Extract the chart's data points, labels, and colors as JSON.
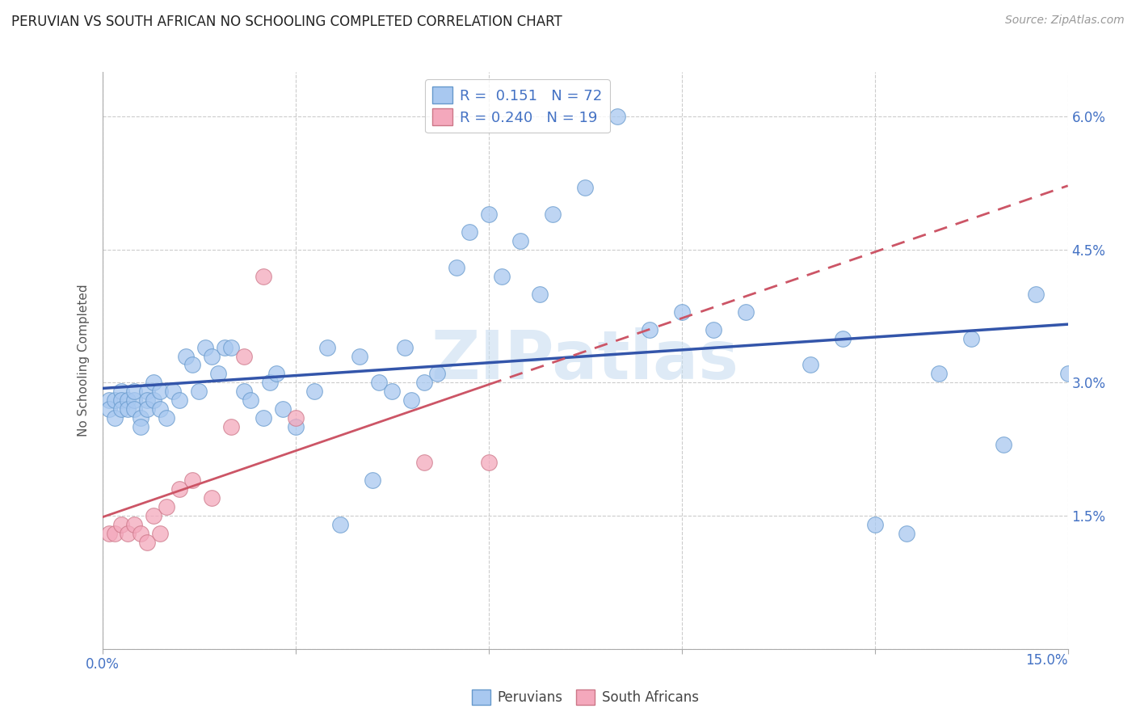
{
  "title": "PERUVIAN VS SOUTH AFRICAN NO SCHOOLING COMPLETED CORRELATION CHART",
  "source": "Source: ZipAtlas.com",
  "ylabel": "No Schooling Completed",
  "xlabel_peruvians": "Peruvians",
  "xlabel_south_africans": "South Africans",
  "xlim": [
    0.0,
    0.15
  ],
  "ylim": [
    0.0,
    0.065
  ],
  "color_peruvian": "#A8C8F0",
  "color_south_african": "#F4A8BC",
  "color_edge_peruvian": "#6699CC",
  "color_edge_south_african": "#CC7788",
  "color_line_peruvian": "#3355AA",
  "color_line_south_african": "#CC5566",
  "color_text_blue": "#4472C4",
  "color_watermark": "#C8DDF0",
  "watermark": "ZIPatlas",
  "legend_R1": "0.151",
  "legend_N1": "72",
  "legend_R2": "0.240",
  "legend_N2": "19",
  "peru_x": [
    0.001,
    0.001,
    0.002,
    0.002,
    0.003,
    0.003,
    0.003,
    0.004,
    0.004,
    0.005,
    0.005,
    0.005,
    0.006,
    0.006,
    0.007,
    0.007,
    0.007,
    0.008,
    0.008,
    0.009,
    0.009,
    0.01,
    0.011,
    0.012,
    0.013,
    0.014,
    0.015,
    0.016,
    0.017,
    0.018,
    0.019,
    0.02,
    0.022,
    0.023,
    0.025,
    0.026,
    0.027,
    0.028,
    0.03,
    0.033,
    0.035,
    0.037,
    0.04,
    0.042,
    0.043,
    0.045,
    0.047,
    0.048,
    0.05,
    0.052,
    0.055,
    0.057,
    0.06,
    0.062,
    0.065,
    0.068,
    0.07,
    0.075,
    0.08,
    0.085,
    0.09,
    0.095,
    0.1,
    0.11,
    0.115,
    0.12,
    0.125,
    0.13,
    0.135,
    0.14,
    0.145,
    0.15
  ],
  "peru_y": [
    0.028,
    0.027,
    0.028,
    0.026,
    0.029,
    0.028,
    0.027,
    0.028,
    0.027,
    0.028,
    0.027,
    0.029,
    0.026,
    0.025,
    0.029,
    0.028,
    0.027,
    0.03,
    0.028,
    0.029,
    0.027,
    0.026,
    0.029,
    0.028,
    0.033,
    0.032,
    0.029,
    0.034,
    0.033,
    0.031,
    0.034,
    0.034,
    0.029,
    0.028,
    0.026,
    0.03,
    0.031,
    0.027,
    0.025,
    0.029,
    0.034,
    0.014,
    0.033,
    0.019,
    0.03,
    0.029,
    0.034,
    0.028,
    0.03,
    0.031,
    0.043,
    0.047,
    0.049,
    0.042,
    0.046,
    0.04,
    0.049,
    0.052,
    0.06,
    0.036,
    0.038,
    0.036,
    0.038,
    0.032,
    0.035,
    0.014,
    0.013,
    0.031,
    0.035,
    0.023,
    0.04,
    0.031
  ],
  "sa_x": [
    0.001,
    0.002,
    0.003,
    0.004,
    0.005,
    0.006,
    0.007,
    0.008,
    0.009,
    0.01,
    0.012,
    0.014,
    0.017,
    0.02,
    0.022,
    0.025,
    0.03,
    0.05,
    0.06
  ],
  "sa_y": [
    0.013,
    0.013,
    0.014,
    0.013,
    0.014,
    0.013,
    0.012,
    0.015,
    0.013,
    0.016,
    0.018,
    0.019,
    0.017,
    0.025,
    0.033,
    0.042,
    0.026,
    0.021,
    0.021
  ]
}
